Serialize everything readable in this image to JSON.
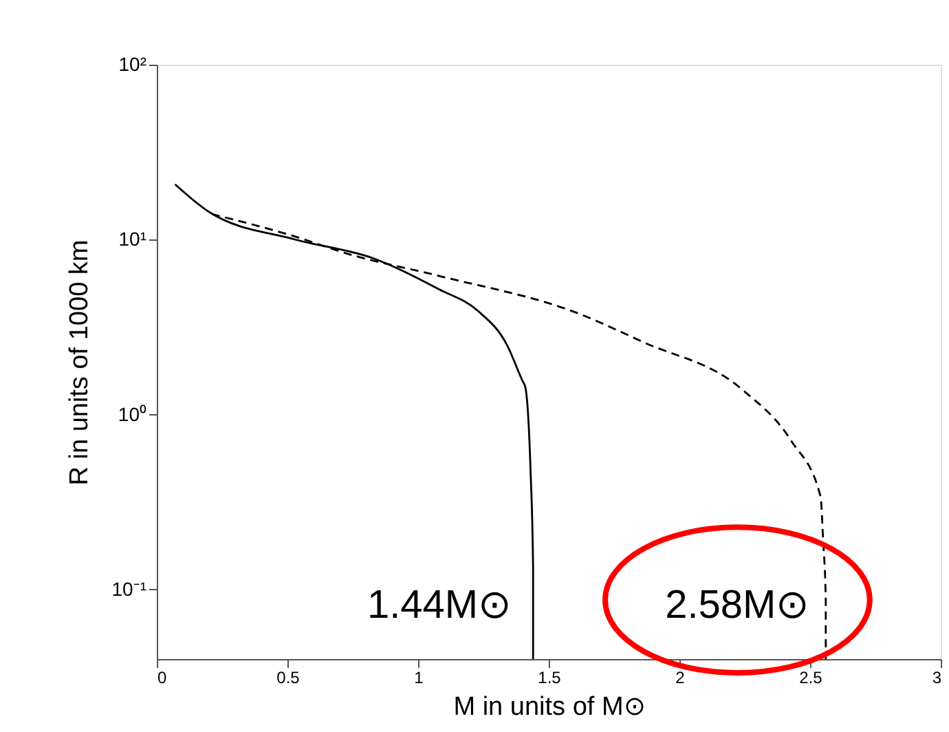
{
  "chart_data": {
    "type": "line",
    "xlabel": "M in units of M⊙",
    "ylabel": "R in units of 1000 km",
    "log": "y",
    "xlim": [
      0,
      3
    ],
    "ylim": [
      0.04,
      100
    ],
    "xticks": [
      0,
      0.5,
      1,
      1.5,
      2,
      2.5,
      3
    ],
    "yticks": [
      {
        "value": 0.1,
        "label": "10⁻¹"
      },
      {
        "value": 1,
        "label": "10⁰"
      },
      {
        "value": 10,
        "label": "10¹"
      },
      {
        "value": 100,
        "label": "10²"
      }
    ],
    "grid": false,
    "series": [
      {
        "color": "#000000",
        "line_style": "solid",
        "x": [
          0.07,
          0.2,
          0.53,
          0.83,
          1.08,
          1.23,
          1.34,
          1.4,
          1.41,
          1.43,
          1.44,
          1.44
        ],
        "values": [
          20.7,
          14.4,
          10,
          7.8,
          5.2,
          3.9,
          2.5,
          1.55,
          1.44,
          0.49,
          0.134,
          0.04
        ]
      },
      {
        "color": "#000000",
        "line_style": "dashed",
        "x": [
          0.21,
          0.53,
          0.73,
          1.08,
          1.61,
          1.86,
          2.24,
          2.43,
          2.54,
          2.55,
          2.56,
          2.56
        ],
        "values": [
          14,
          10.4,
          8.3,
          6.2,
          3.8,
          2.6,
          1.39,
          0.7,
          0.34,
          0.19,
          0.087,
          0.04
        ]
      }
    ],
    "annotations": [
      {
        "text": "1.44M⊙",
        "x": 1.44,
        "y": 0.081
      },
      {
        "text": "2.58M⊙",
        "x": 2.58,
        "y": 0.081
      }
    ]
  }
}
